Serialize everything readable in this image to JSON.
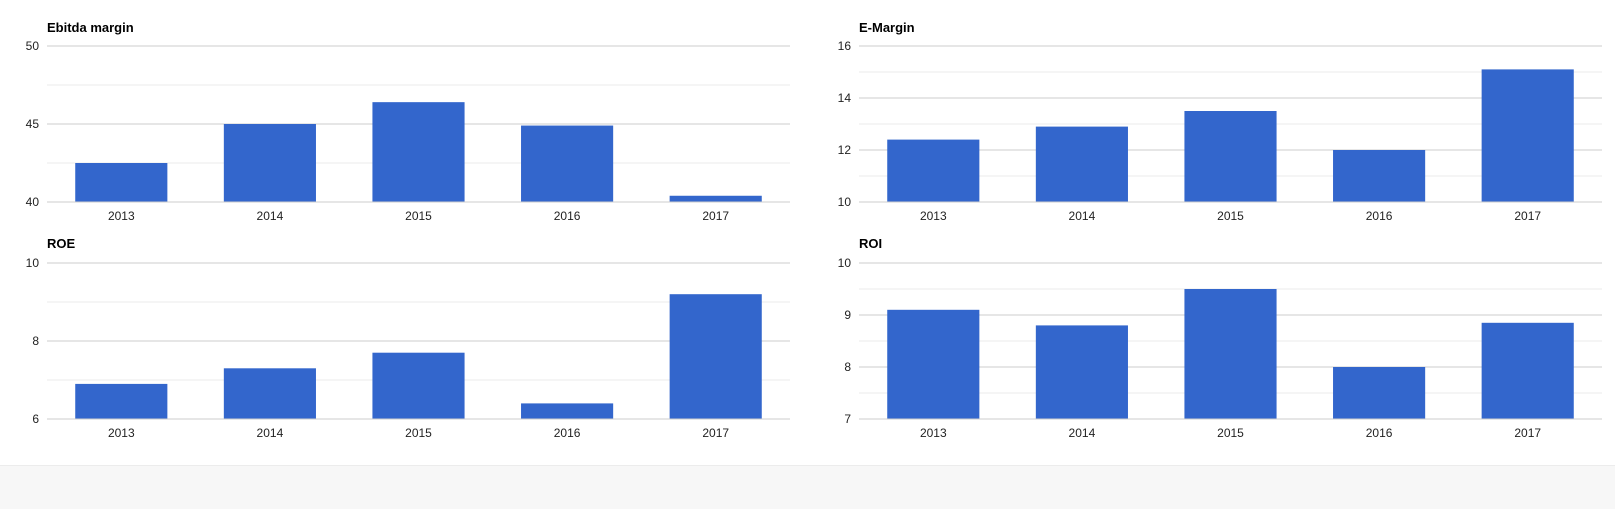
{
  "colors": {
    "bar": "#3366cc",
    "gridline": "#cccccc",
    "minor_gridline": "#ebebeb",
    "text": "#222222",
    "title": "#000000"
  },
  "chart_data": [
    {
      "type": "bar",
      "title": "Ebitda margin",
      "categories": [
        "2013",
        "2014",
        "2015",
        "2016",
        "2017"
      ],
      "values": [
        42.5,
        45.0,
        46.4,
        44.9,
        40.4
      ],
      "ylim": [
        40,
        50
      ],
      "yticks": [
        "50",
        "45",
        "40"
      ],
      "grid": true
    },
    {
      "type": "bar",
      "title": "E-Margin",
      "categories": [
        "2013",
        "2014",
        "2015",
        "2016",
        "2017"
      ],
      "values": [
        12.4,
        12.9,
        13.5,
        12.0,
        15.1
      ],
      "ylim": [
        10,
        16
      ],
      "yticks": [
        "16",
        "14",
        "12",
        "10"
      ],
      "grid": true
    },
    {
      "type": "bar",
      "title": "ROE",
      "categories": [
        "2013",
        "2014",
        "2015",
        "2016",
        "2017"
      ],
      "values": [
        6.9,
        7.3,
        7.7,
        6.4,
        9.2
      ],
      "ylim": [
        6,
        10
      ],
      "yticks": [
        "10",
        "8",
        "6"
      ],
      "grid": true
    },
    {
      "type": "bar",
      "title": "ROI",
      "categories": [
        "2013",
        "2014",
        "2015",
        "2016",
        "2017"
      ],
      "values": [
        9.1,
        8.8,
        9.5,
        8.0,
        8.85
      ],
      "ylim": [
        7,
        10
      ],
      "yticks": [
        "10",
        "9",
        "8",
        "7"
      ],
      "grid": true
    }
  ]
}
